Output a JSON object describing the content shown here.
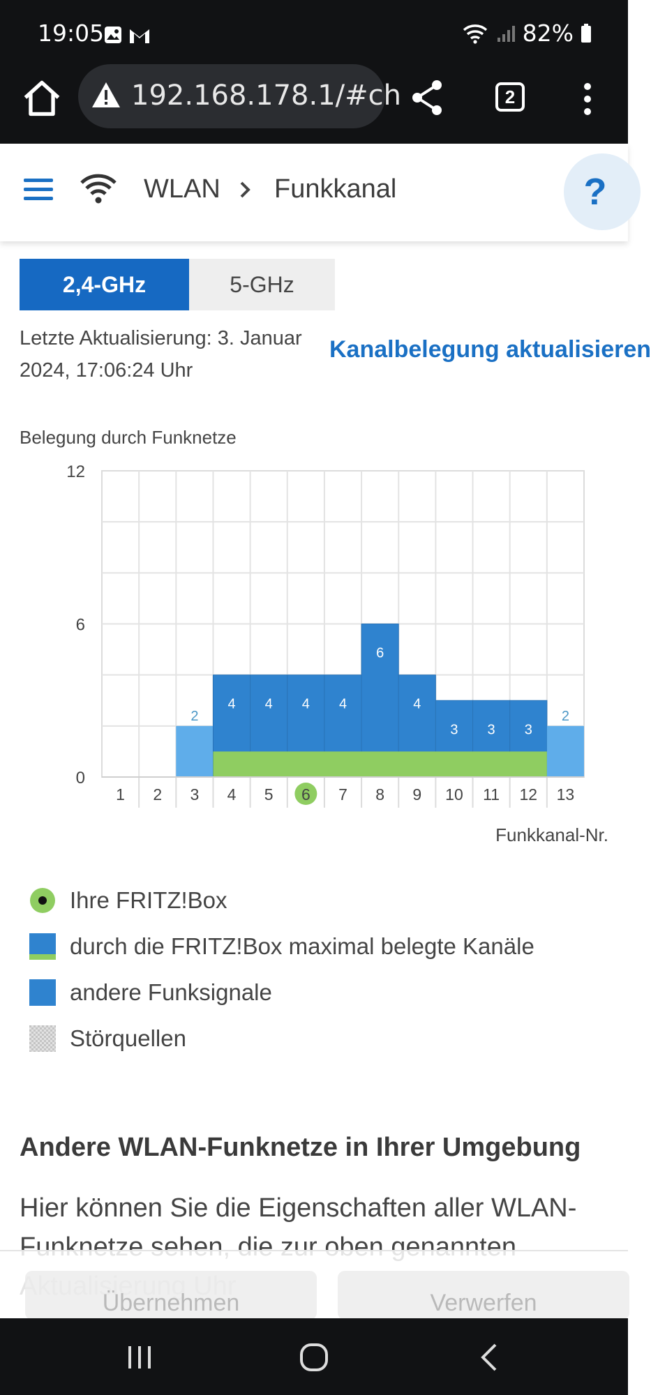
{
  "status_bar": {
    "time": "19:05",
    "battery": "82%",
    "icons": [
      "image-icon",
      "gmail-icon",
      "wifi-icon",
      "signal-icon",
      "battery-icon"
    ]
  },
  "browser": {
    "url": "192.168.178.1/#ch",
    "tab_count": "2"
  },
  "header": {
    "breadcrumb_section": "WLAN",
    "breadcrumb_page": "Funkkanal",
    "help_label": "?"
  },
  "band_tabs": {
    "active": "2,4-GHz",
    "inactive": "5-GHz"
  },
  "update": {
    "last_update_line1": "Letzte Aktualisierung: 3. Januar",
    "last_update_line2": "2024, 17:06:24 Uhr",
    "refresh_link": "Kanalbelegung aktualisieren"
  },
  "chart_data": {
    "type": "bar",
    "title": "Belegung durch Funknetze",
    "xlabel": "Funkkanal-Nr.",
    "ylabel": "",
    "categories": [
      "1",
      "2",
      "3",
      "4",
      "5",
      "6",
      "7",
      "8",
      "9",
      "10",
      "11",
      "12",
      "13"
    ],
    "y_ticks": [
      "0",
      "6",
      "12"
    ],
    "ylim": [
      0,
      12
    ],
    "grid": true,
    "own_channel": "6",
    "values": [
      0,
      0,
      2,
      4,
      4,
      4,
      4,
      6,
      4,
      3,
      3,
      3,
      2
    ],
    "value_labels": [
      "",
      "",
      "2",
      "4",
      "4",
      "4",
      "4",
      "6",
      "4",
      "3",
      "3",
      "3",
      "2"
    ],
    "fritzbox_band_channels": [
      "4",
      "5",
      "6",
      "7",
      "8",
      "9",
      "10",
      "11",
      "12"
    ],
    "fritzbox_band_height": 1,
    "colors": {
      "bar_dark": "#2f83cf",
      "bar_light": "#5fadea",
      "fritzbox_band": "#8fcd61",
      "own_channel_marker": "#8fcd61",
      "grid": "#e3e3e3"
    }
  },
  "legend": [
    {
      "icon": "fritzbox-dot-icon",
      "label": "Ihre FRITZ!Box"
    },
    {
      "icon": "fritzbox-channels-swatch",
      "label": "durch die FRITZ!Box maximal belegte Kanäle"
    },
    {
      "icon": "other-signals-swatch",
      "label": "andere Funksignale"
    },
    {
      "icon": "interference-swatch",
      "label": "Störquellen"
    }
  ],
  "section": {
    "heading": "Andere WLAN-Funknetze in Ihrer Umgebung",
    "body": "Hier können Sie die Eigenschaften aller WLAN-Funknetze sehen, die zur oben genannten Aktualisierung Uhr"
  },
  "footer": {
    "apply": "Übernehmen",
    "discard": "Verwerfen"
  }
}
